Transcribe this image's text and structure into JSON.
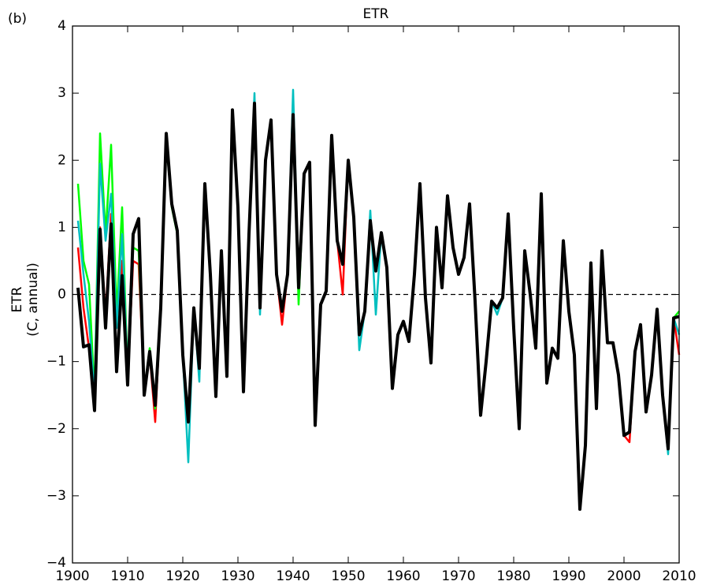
{
  "chart_data": {
    "type": "line",
    "title": "ETR",
    "annotation": "(b)",
    "ylabel": [
      "ETR",
      "(C, annual)"
    ],
    "x": [
      1901,
      1902,
      1903,
      1904,
      1905,
      1906,
      1907,
      1908,
      1909,
      1910,
      1911,
      1912,
      1913,
      1914,
      1915,
      1916,
      1917,
      1918,
      1919,
      1920,
      1921,
      1922,
      1923,
      1924,
      1925,
      1926,
      1927,
      1928,
      1929,
      1930,
      1931,
      1932,
      1933,
      1934,
      1935,
      1936,
      1937,
      1938,
      1939,
      1940,
      1941,
      1942,
      1943,
      1944,
      1945,
      1946,
      1947,
      1948,
      1949,
      1950,
      1951,
      1952,
      1953,
      1954,
      1955,
      1956,
      1957,
      1958,
      1959,
      1960,
      1961,
      1962,
      1963,
      1964,
      1965,
      1966,
      1967,
      1968,
      1969,
      1970,
      1971,
      1972,
      1973,
      1974,
      1975,
      1976,
      1977,
      1978,
      1979,
      1980,
      1981,
      1982,
      1983,
      1984,
      1985,
      1986,
      1987,
      1988,
      1989,
      1990,
      1991,
      1992,
      1993,
      1994,
      1995,
      1996,
      1997,
      1998,
      1999,
      2000,
      2001,
      2002,
      2003,
      2004,
      2005,
      2006,
      2007,
      2008,
      2009,
      2010
    ],
    "series": [
      {
        "color": "#ff0000",
        "width": 2.5,
        "values": [
          0.7,
          -0.2,
          -0.8,
          -1.3,
          1.0,
          -0.3,
          1.2,
          -0.4,
          0.5,
          -1.3,
          0.5,
          0.45,
          -1.4,
          -0.9,
          -1.9,
          -0.2,
          2.4,
          1.35,
          0.95,
          -0.9,
          -1.9,
          -0.2,
          -1.1,
          1.65,
          0.3,
          -1.52,
          0.65,
          -1.22,
          2.75,
          1.3,
          -1.45,
          0.9,
          2.85,
          -0.2,
          2.0,
          2.6,
          0.3,
          -0.45,
          0.3,
          2.68,
          0.1,
          1.8,
          1.97,
          -1.95,
          -0.15,
          0.05,
          2.37,
          0.8,
          0.0,
          2.0,
          1.15,
          -0.6,
          -0.25,
          1.1,
          0.35,
          0.92,
          0.4,
          -1.4,
          -0.6,
          -0.4,
          -0.7,
          0.3,
          1.65,
          -0.05,
          -1.02,
          1.0,
          0.1,
          1.47,
          0.7,
          0.3,
          0.55,
          1.35,
          -0.1,
          -1.8,
          -1.0,
          -0.1,
          -0.2,
          -0.05,
          1.2,
          -0.5,
          -2.0,
          0.65,
          0.0,
          -0.8,
          1.5,
          -1.32,
          -0.8,
          -0.95,
          0.8,
          -0.25,
          -0.9,
          -3.2,
          -2.25,
          0.47,
          -1.7,
          0.65,
          -0.72,
          -0.72,
          -1.2,
          -2.1,
          -2.2,
          -0.85,
          -0.45,
          -1.75,
          -1.2,
          -0.22,
          -1.5,
          -2.3,
          -0.35,
          -0.9
        ]
      },
      {
        "color": "#00ff00",
        "width": 2.5,
        "values": [
          1.65,
          0.5,
          0.15,
          -1.5,
          2.4,
          0.9,
          2.23,
          -0.3,
          1.3,
          -1.2,
          0.7,
          0.65,
          -1.45,
          -0.8,
          -1.7,
          -0.2,
          2.3,
          1.3,
          0.9,
          -0.9,
          -1.9,
          -0.2,
          -1.1,
          1.65,
          0.3,
          -1.52,
          0.65,
          -1.22,
          2.75,
          1.3,
          -1.45,
          0.9,
          2.85,
          -0.2,
          2.0,
          2.6,
          0.3,
          -0.25,
          0.3,
          2.68,
          -0.15,
          1.8,
          1.97,
          -1.95,
          -0.15,
          0.05,
          2.37,
          0.8,
          0.45,
          2.0,
          1.15,
          -0.6,
          -0.25,
          1.1,
          0.35,
          0.92,
          0.4,
          -1.4,
          -0.6,
          -0.4,
          -0.7,
          0.3,
          1.65,
          -0.05,
          -1.02,
          1.0,
          0.1,
          1.47,
          0.7,
          0.3,
          0.55,
          1.35,
          -0.1,
          -1.8,
          -1.0,
          -0.1,
          -0.2,
          -0.05,
          1.2,
          -0.5,
          -2.0,
          0.65,
          0.0,
          -0.8,
          1.5,
          -1.32,
          -0.8,
          -0.95,
          0.8,
          -0.25,
          -0.9,
          -3.2,
          -2.25,
          0.47,
          -1.7,
          0.65,
          -0.72,
          -0.72,
          -1.2,
          -2.1,
          -2.05,
          -0.85,
          -0.45,
          -1.75,
          -1.2,
          -0.22,
          -1.5,
          -2.3,
          -0.35,
          -0.25
        ]
      },
      {
        "color": "#00bfbf",
        "width": 2.5,
        "values": [
          1.1,
          0.3,
          -0.4,
          -1.5,
          1.95,
          0.8,
          1.5,
          -0.5,
          0.9,
          -1.2,
          0.9,
          1.13,
          -1.5,
          -0.85,
          -1.65,
          -0.2,
          2.4,
          1.35,
          0.95,
          -0.9,
          -2.5,
          -0.2,
          -1.3,
          1.65,
          0.3,
          -1.52,
          0.65,
          -1.22,
          2.75,
          1.3,
          -1.45,
          0.9,
          3.0,
          -0.3,
          2.0,
          2.6,
          0.3,
          -0.25,
          0.3,
          3.05,
          0.1,
          1.8,
          1.97,
          -1.95,
          -0.15,
          0.05,
          2.37,
          0.8,
          0.45,
          2.0,
          1.15,
          -0.83,
          -0.25,
          1.25,
          -0.3,
          0.92,
          0.4,
          -1.4,
          -0.6,
          -0.4,
          -0.7,
          0.3,
          1.65,
          -0.05,
          -1.02,
          1.0,
          0.1,
          1.47,
          0.7,
          0.3,
          0.55,
          1.35,
          -0.1,
          -1.8,
          -1.0,
          -0.1,
          -0.3,
          -0.05,
          1.2,
          -0.5,
          -2.0,
          0.65,
          0.0,
          -0.8,
          1.5,
          -1.32,
          -0.8,
          -0.95,
          0.8,
          -0.25,
          -0.9,
          -3.2,
          -2.25,
          0.47,
          -1.7,
          0.65,
          -0.72,
          -0.72,
          -1.2,
          -2.1,
          -2.05,
          -0.85,
          -0.45,
          -1.75,
          -1.2,
          -0.22,
          -1.5,
          -2.38,
          -0.35,
          -0.6
        ]
      },
      {
        "color": "#000000",
        "width": 4,
        "values": [
          0.1,
          -0.78,
          -0.75,
          -1.73,
          0.97,
          -0.5,
          1.05,
          -1.15,
          0.28,
          -1.35,
          0.9,
          1.13,
          -1.5,
          -0.85,
          -1.65,
          -0.2,
          2.4,
          1.35,
          0.95,
          -0.9,
          -1.9,
          -0.2,
          -1.1,
          1.65,
          0.3,
          -1.52,
          0.65,
          -1.22,
          2.75,
          1.3,
          -1.45,
          0.9,
          2.85,
          -0.2,
          2.0,
          2.6,
          0.3,
          -0.25,
          0.3,
          2.68,
          0.1,
          1.8,
          1.97,
          -1.95,
          -0.15,
          0.05,
          2.37,
          0.8,
          0.45,
          2.0,
          1.15,
          -0.6,
          -0.25,
          1.1,
          0.35,
          0.92,
          0.4,
          -1.4,
          -0.6,
          -0.4,
          -0.7,
          0.3,
          1.65,
          -0.05,
          -1.02,
          1.0,
          0.1,
          1.47,
          0.7,
          0.3,
          0.55,
          1.35,
          -0.1,
          -1.8,
          -1.0,
          -0.1,
          -0.2,
          -0.05,
          1.2,
          -0.5,
          -2.0,
          0.65,
          0.0,
          -0.8,
          1.5,
          -1.32,
          -0.8,
          -0.95,
          0.8,
          -0.25,
          -0.9,
          -3.2,
          -2.25,
          0.47,
          -1.7,
          0.65,
          -0.72,
          -0.72,
          -1.2,
          -2.1,
          -2.05,
          -0.85,
          -0.45,
          -1.75,
          -1.2,
          -0.22,
          -1.5,
          -2.3,
          -0.35,
          -0.33
        ]
      }
    ],
    "reference_line": {
      "value": 0,
      "style": "dashed"
    },
    "xlim": [
      1900,
      2010
    ],
    "xticks": [
      1900,
      1910,
      1920,
      1930,
      1940,
      1950,
      1960,
      1970,
      1980,
      1990,
      2000,
      2010
    ],
    "ylim": [
      -4,
      4
    ],
    "yticks": [
      {
        "value": -4,
        "label": "−4"
      },
      {
        "value": -3,
        "label": "−3"
      },
      {
        "value": -2,
        "label": "−2"
      },
      {
        "value": -1,
        "label": "−1"
      },
      0,
      1,
      2,
      3,
      4
    ],
    "grid": false
  }
}
